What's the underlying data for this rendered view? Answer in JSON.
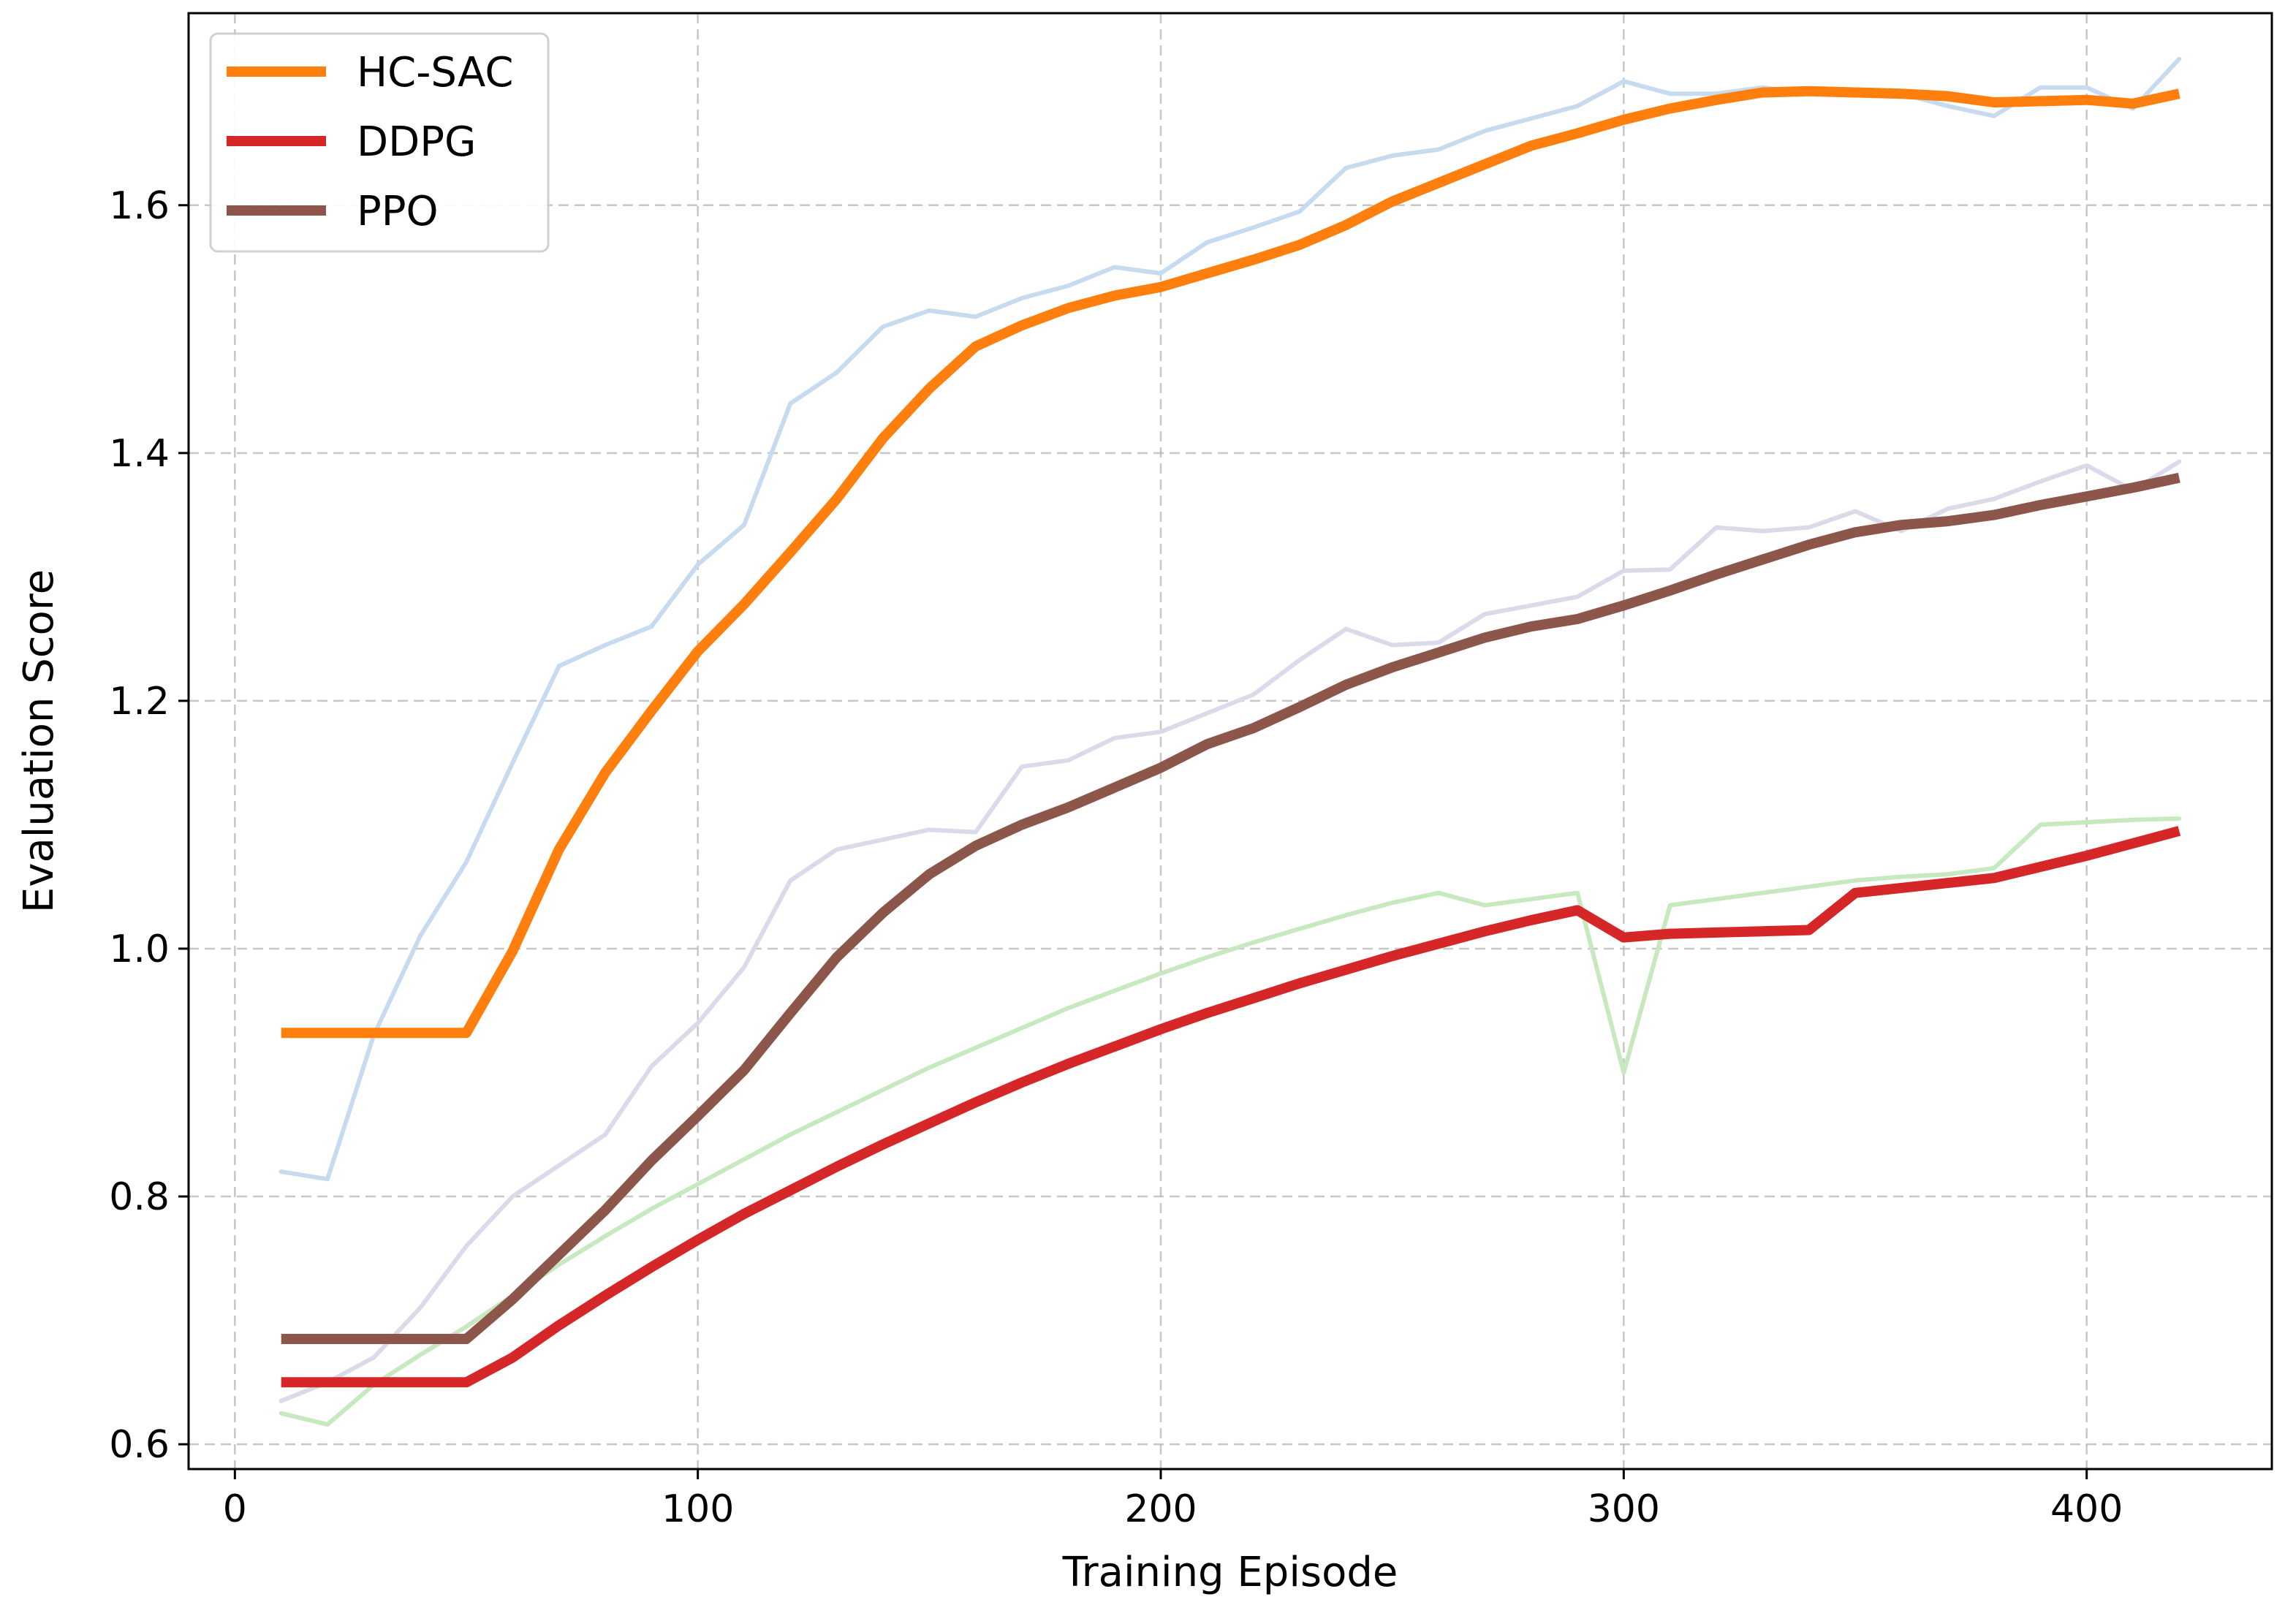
{
  "chart_data": {
    "type": "line",
    "xlabel": "Training Episode",
    "ylabel": "Evaluation Score",
    "xlim": [
      -10,
      440
    ],
    "ylim": [
      0.58,
      1.755
    ],
    "xticks": [
      0,
      100,
      200,
      300,
      400
    ],
    "yticks": [
      0.6,
      0.8,
      1.0,
      1.2,
      1.4,
      1.6
    ],
    "xtick_labels": [
      "0",
      "100",
      "200",
      "300",
      "400"
    ],
    "ytick_labels": [
      "0.6",
      "0.8",
      "1.0",
      "1.2",
      "1.4",
      "1.6"
    ],
    "grid": true,
    "legend_position": "top-left",
    "x": [
      10,
      20,
      30,
      40,
      50,
      60,
      70,
      80,
      90,
      100,
      110,
      120,
      130,
      140,
      150,
      160,
      170,
      180,
      190,
      200,
      210,
      220,
      230,
      240,
      250,
      260,
      270,
      280,
      290,
      300,
      310,
      320,
      330,
      340,
      350,
      360,
      370,
      380,
      390,
      400,
      410,
      420
    ],
    "series": [
      {
        "name": "HC-SAC",
        "color": "#ff7f0e",
        "values": [
          0.932,
          0.932,
          0.932,
          0.932,
          0.932,
          0.998,
          1.08,
          1.142,
          1.192,
          1.24,
          1.278,
          1.32,
          1.363,
          1.412,
          1.452,
          1.486,
          1.503,
          1.517,
          1.527,
          1.534,
          1.545,
          1.556,
          1.568,
          1.584,
          1.603,
          1.618,
          1.633,
          1.648,
          1.658,
          1.669,
          1.678,
          1.685,
          1.691,
          1.692,
          1.691,
          1.69,
          1.688,
          1.683,
          1.684,
          1.685,
          1.682,
          1.69
        ]
      },
      {
        "name": "DDPG",
        "color": "#d62728",
        "values": [
          0.65,
          0.65,
          0.65,
          0.65,
          0.65,
          0.67,
          0.696,
          0.72,
          0.743,
          0.765,
          0.786,
          0.805,
          0.824,
          0.842,
          0.859,
          0.876,
          0.892,
          0.907,
          0.921,
          0.935,
          0.948,
          0.96,
          0.972,
          0.983,
          0.994,
          1.004,
          1.014,
          1.023,
          1.031,
          1.009,
          1.012,
          1.013,
          1.014,
          1.015,
          1.045,
          1.049,
          1.053,
          1.057,
          1.066,
          1.075,
          1.085,
          1.095
        ]
      },
      {
        "name": "PPO",
        "color": "#8c564b",
        "values": [
          0.685,
          0.685,
          0.685,
          0.685,
          0.685,
          0.717,
          0.753,
          0.789,
          0.829,
          0.865,
          0.902,
          0.948,
          0.993,
          1.029,
          1.06,
          1.083,
          1.1,
          1.114,
          1.13,
          1.146,
          1.165,
          1.178,
          1.195,
          1.213,
          1.227,
          1.239,
          1.251,
          1.26,
          1.266,
          1.277,
          1.289,
          1.302,
          1.314,
          1.326,
          1.336,
          1.342,
          1.345,
          1.35,
          1.358,
          1.365,
          1.372,
          1.38
        ]
      }
    ],
    "raw_series": [
      {
        "color": "#c6dbef",
        "values": [
          0.82,
          0.814,
          0.93,
          1.01,
          1.07,
          1.15,
          1.228,
          1.245,
          1.26,
          1.31,
          1.342,
          1.44,
          1.465,
          1.502,
          1.515,
          1.51,
          1.525,
          1.535,
          1.55,
          1.545,
          1.57,
          1.582,
          1.595,
          1.63,
          1.64,
          1.645,
          1.66,
          1.67,
          1.68,
          1.7,
          1.69,
          1.69,
          1.695,
          1.69,
          1.69,
          1.69,
          1.68,
          1.672,
          1.695,
          1.695,
          1.678,
          1.718
        ]
      },
      {
        "color": "#c7e9c0",
        "values": [
          0.625,
          0.616,
          0.648,
          0.672,
          0.695,
          0.72,
          0.745,
          0.768,
          0.79,
          0.81,
          0.83,
          0.85,
          0.868,
          0.886,
          0.904,
          0.92,
          0.936,
          0.952,
          0.966,
          0.98,
          0.993,
          1.005,
          1.016,
          1.027,
          1.037,
          1.045,
          1.035,
          1.04,
          1.045,
          0.9,
          1.035,
          1.04,
          1.045,
          1.05,
          1.055,
          1.058,
          1.06,
          1.065,
          1.1,
          1.102,
          1.104,
          1.105
        ]
      },
      {
        "color": "#dadaeb",
        "values": [
          0.635,
          0.65,
          0.67,
          0.71,
          0.76,
          0.8,
          0.825,
          0.85,
          0.905,
          0.94,
          0.985,
          1.055,
          1.08,
          1.088,
          1.096,
          1.094,
          1.147,
          1.152,
          1.17,
          1.175,
          1.19,
          1.205,
          1.233,
          1.258,
          1.245,
          1.247,
          1.27,
          1.277,
          1.284,
          1.305,
          1.306,
          1.34,
          1.337,
          1.34,
          1.353,
          1.337,
          1.355,
          1.363,
          1.377,
          1.39,
          1.37,
          1.393
        ]
      }
    ]
  }
}
